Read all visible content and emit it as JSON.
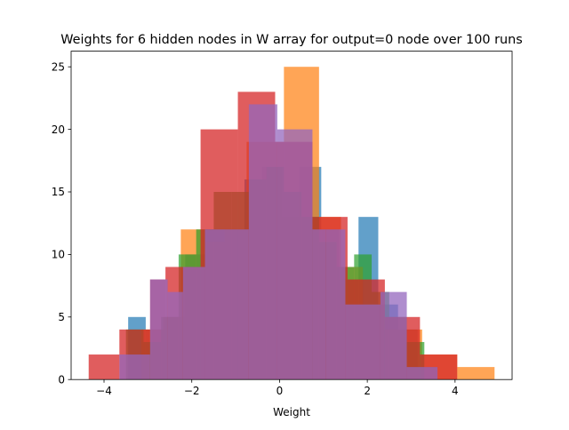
{
  "chart_data": {
    "type": "histogram",
    "title": "Weights for 6 hidden nodes in W array for output=0 node over 100 runs",
    "xlabel": "Weight",
    "ylabel": "",
    "xlim": [
      -4.75,
      5.3
    ],
    "ylim": [
      0,
      26.25
    ],
    "xticks": [
      -4,
      -2,
      0,
      2,
      4
    ],
    "xtick_labels": [
      "−4",
      "−2",
      "0",
      "2",
      "4"
    ],
    "yticks": [
      0,
      5,
      10,
      15,
      20,
      25
    ],
    "ytick_labels": [
      "0",
      "5",
      "10",
      "15",
      "20",
      "25"
    ],
    "grid": false,
    "legend": "none",
    "series": [
      {
        "color": "#1f77b4",
        "opacity": 0.7,
        "bins": [
          {
            "x0": -3.45,
            "x1": -3.05,
            "y": 5
          },
          {
            "x0": -3.05,
            "x1": -2.6,
            "y": 4
          },
          {
            "x0": -2.6,
            "x1": -2.15,
            "y": 5
          },
          {
            "x0": -2.15,
            "x1": -1.7,
            "y": 10
          },
          {
            "x0": -1.7,
            "x1": -1.3,
            "y": 12
          },
          {
            "x0": -1.3,
            "x1": -0.8,
            "y": 12
          },
          {
            "x0": -0.8,
            "x1": -0.4,
            "y": 16
          },
          {
            "x0": -0.4,
            "x1": 0.05,
            "y": 17
          },
          {
            "x0": 0.05,
            "x1": 0.45,
            "y": 13
          },
          {
            "x0": 0.45,
            "x1": 0.95,
            "y": 17
          },
          {
            "x0": 0.95,
            "x1": 1.35,
            "y": 12
          },
          {
            "x0": 1.35,
            "x1": 1.8,
            "y": 8
          },
          {
            "x0": 1.8,
            "x1": 2.25,
            "y": 13
          },
          {
            "x0": 2.25,
            "x1": 2.7,
            "y": 6
          },
          {
            "x0": 2.7,
            "x1": 3.15,
            "y": 4
          },
          {
            "x0": 3.15,
            "x1": 3.6,
            "y": 1
          }
        ]
      },
      {
        "color": "#ff7f0e",
        "opacity": 0.7,
        "bins": [
          {
            "x0": -3.15,
            "x1": -2.65,
            "y": 4
          },
          {
            "x0": -2.65,
            "x1": -2.25,
            "y": 5
          },
          {
            "x0": -2.25,
            "x1": -1.7,
            "y": 12
          },
          {
            "x0": -1.7,
            "x1": -1.25,
            "y": 11
          },
          {
            "x0": -1.25,
            "x1": -0.75,
            "y": 12
          },
          {
            "x0": -0.75,
            "x1": 0.1,
            "y": 19
          },
          {
            "x0": 0.1,
            "x1": 0.9,
            "y": 25
          },
          {
            "x0": 0.9,
            "x1": 1.4,
            "y": 13
          },
          {
            "x0": 1.4,
            "x1": 1.9,
            "y": 9
          },
          {
            "x0": 1.9,
            "x1": 2.4,
            "y": 6
          },
          {
            "x0": 2.4,
            "x1": 3.25,
            "y": 4
          },
          {
            "x0": 3.25,
            "x1": 4.05,
            "y": 2
          },
          {
            "x0": 4.05,
            "x1": 4.9,
            "y": 1
          }
        ]
      },
      {
        "color": "#2ca02c",
        "opacity": 0.7,
        "bins": [
          {
            "x0": -3.5,
            "x1": -3.1,
            "y": 4
          },
          {
            "x0": -3.1,
            "x1": -2.7,
            "y": 3
          },
          {
            "x0": -2.7,
            "x1": -2.3,
            "y": 5
          },
          {
            "x0": -2.3,
            "x1": -1.9,
            "y": 10
          },
          {
            "x0": -1.9,
            "x1": -1.5,
            "y": 12
          },
          {
            "x0": -1.5,
            "x1": -1.1,
            "y": 15
          },
          {
            "x0": -1.1,
            "x1": -0.7,
            "y": 15
          },
          {
            "x0": -0.7,
            "x1": -0.3,
            "y": 16
          },
          {
            "x0": -0.3,
            "x1": 0.1,
            "y": 17
          },
          {
            "x0": 0.1,
            "x1": 0.5,
            "y": 15
          },
          {
            "x0": 0.5,
            "x1": 0.9,
            "y": 13
          },
          {
            "x0": 0.9,
            "x1": 1.3,
            "y": 11
          },
          {
            "x0": 1.3,
            "x1": 1.7,
            "y": 9
          },
          {
            "x0": 1.7,
            "x1": 2.1,
            "y": 10
          },
          {
            "x0": 2.1,
            "x1": 2.5,
            "y": 7
          },
          {
            "x0": 2.5,
            "x1": 2.9,
            "y": 5
          },
          {
            "x0": 2.9,
            "x1": 3.3,
            "y": 3
          }
        ]
      },
      {
        "color": "#d62728",
        "opacity": 0.75,
        "bins": [
          {
            "x0": -4.35,
            "x1": -3.65,
            "y": 2
          },
          {
            "x0": -3.65,
            "x1": -2.95,
            "y": 4
          },
          {
            "x0": -2.95,
            "x1": -2.6,
            "y": 8
          },
          {
            "x0": -2.6,
            "x1": -1.8,
            "y": 9
          },
          {
            "x0": -1.8,
            "x1": -0.95,
            "y": 20
          },
          {
            "x0": -0.95,
            "x1": -0.1,
            "y": 23
          },
          {
            "x0": -0.1,
            "x1": 0.75,
            "y": 19
          },
          {
            "x0": 0.75,
            "x1": 1.55,
            "y": 13
          },
          {
            "x0": 1.55,
            "x1": 2.4,
            "y": 8
          },
          {
            "x0": 2.4,
            "x1": 3.2,
            "y": 5
          },
          {
            "x0": 3.2,
            "x1": 4.05,
            "y": 2
          }
        ]
      },
      {
        "color": "#9467bd",
        "opacity": 0.75,
        "bins": [
          {
            "x0": -3.65,
            "x1": -2.95,
            "y": 2
          },
          {
            "x0": -2.95,
            "x1": -2.55,
            "y": 8
          },
          {
            "x0": -2.55,
            "x1": -2.2,
            "y": 7
          },
          {
            "x0": -2.2,
            "x1": -1.7,
            "y": 9
          },
          {
            "x0": -1.7,
            "x1": -0.7,
            "y": 12
          },
          {
            "x0": -0.7,
            "x1": -0.05,
            "y": 22
          },
          {
            "x0": -0.05,
            "x1": 0.75,
            "y": 20
          },
          {
            "x0": 0.75,
            "x1": 1.05,
            "y": 12
          },
          {
            "x0": 1.05,
            "x1": 1.5,
            "y": 12
          },
          {
            "x0": 1.5,
            "x1": 2.3,
            "y": 6
          },
          {
            "x0": 2.3,
            "x1": 2.9,
            "y": 7
          },
          {
            "x0": 2.9,
            "x1": 3.6,
            "y": 1
          }
        ]
      }
    ]
  }
}
